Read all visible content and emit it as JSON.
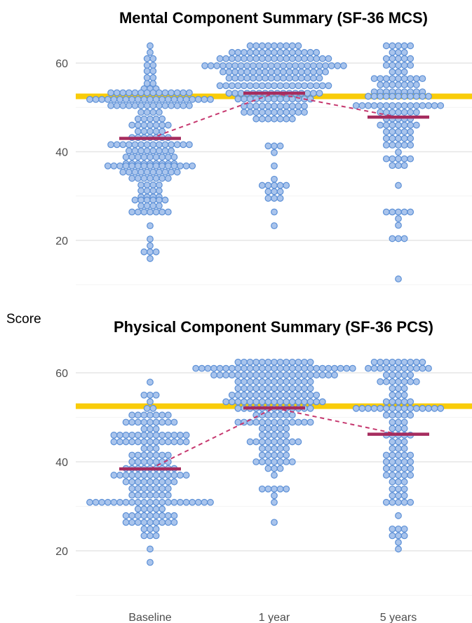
{
  "chart_data": {
    "type": "scatter",
    "subtype": "dot-plot",
    "ylabel": "Score",
    "categories": [
      "Baseline",
      "1 year",
      "5 years"
    ],
    "grid": true,
    "colors": {
      "dot_fill": "#a9c4ec",
      "dot_stroke": "#5b8fd6",
      "reference_line": "#f9cc09",
      "mean_marker": "#a62c5e",
      "mean_connector": "#c6386f"
    },
    "panels": [
      {
        "title": "Mental Component Summary (SF-36 MCS)",
        "ylim": [
          10,
          66
        ],
        "y_ticks": [
          20,
          40,
          60
        ],
        "reference_line": 52.5,
        "means": [
          43.0,
          53.2,
          47.8
        ],
        "series": [
          {
            "category": "Baseline",
            "groups": [
              [
                63.9,
                1
              ],
              [
                62.4,
                1
              ],
              [
                61.0,
                2
              ],
              [
                59.5,
                2
              ],
              [
                58.2,
                2
              ],
              [
                56.7,
                2
              ],
              [
                55.4,
                2
              ],
              [
                54.2,
                3
              ],
              [
                53.3,
                14
              ],
              [
                51.8,
                21
              ],
              [
                50.4,
                14
              ],
              [
                48.9,
                4
              ],
              [
                47.4,
                5
              ],
              [
                46.0,
                7
              ],
              [
                44.6,
                5
              ],
              [
                43.2,
                7
              ],
              [
                41.6,
                14
              ],
              [
                40.2,
                8
              ],
              [
                38.8,
                9
              ],
              [
                37.3,
                9
              ],
              [
                36.8,
                15
              ],
              [
                35.4,
                10
              ],
              [
                34.0,
                7
              ],
              [
                32.5,
                4
              ],
              [
                31.2,
                4
              ],
              [
                29.8,
                4
              ],
              [
                29.1,
                6
              ],
              [
                27.8,
                4
              ],
              [
                26.4,
                7
              ],
              [
                23.3,
                1
              ],
              [
                20.3,
                1
              ],
              [
                18.8,
                1
              ],
              [
                17.4,
                3
              ],
              [
                15.9,
                1
              ]
            ]
          },
          {
            "category": "1 year",
            "groups": [
              [
                63.9,
                9
              ],
              [
                62.4,
                15
              ],
              [
                61.0,
                19
              ],
              [
                59.4,
                24
              ],
              [
                58.0,
                18
              ],
              [
                56.6,
                16
              ],
              [
                54.9,
                19
              ],
              [
                53.2,
                16
              ],
              [
                51.9,
                13
              ],
              [
                50.3,
                11
              ],
              [
                48.9,
                11
              ],
              [
                47.4,
                7
              ],
              [
                41.3,
                3
              ],
              [
                39.8,
                1
              ],
              [
                36.8,
                1
              ],
              [
                33.8,
                1
              ],
              [
                32.4,
                5
              ],
              [
                31.0,
                3
              ],
              [
                29.5,
                3
              ],
              [
                26.4,
                1
              ],
              [
                23.3,
                1
              ]
            ]
          },
          {
            "category": "5 years",
            "groups": [
              [
                63.9,
                5
              ],
              [
                62.4,
                3
              ],
              [
                61.0,
                5
              ],
              [
                59.5,
                5
              ],
              [
                58.0,
                3
              ],
              [
                56.5,
                9
              ],
              [
                55.1,
                7
              ],
              [
                53.5,
                9
              ],
              [
                52.5,
                11
              ],
              [
                50.4,
                15
              ],
              [
                48.9,
                7
              ],
              [
                47.4,
                5
              ],
              [
                46.0,
                7
              ],
              [
                44.5,
                5
              ],
              [
                43.0,
                5
              ],
              [
                41.5,
                5
              ],
              [
                39.9,
                1
              ],
              [
                38.4,
                5
              ],
              [
                36.9,
                3
              ],
              [
                32.4,
                1
              ],
              [
                26.4,
                5
              ],
              [
                24.9,
                1
              ],
              [
                23.4,
                1
              ],
              [
                20.4,
                3
              ],
              [
                11.3,
                1
              ]
            ]
          }
        ]
      },
      {
        "title": "Physical Component Summary (SF-36 PCS)",
        "ylim": [
          10,
          66
        ],
        "y_ticks": [
          20,
          40,
          60
        ],
        "reference_line": 52.5,
        "means": [
          38.4,
          52.1,
          46.2
        ],
        "series": [
          {
            "category": "Baseline",
            "groups": [
              [
                57.9,
                1
              ],
              [
                55.0,
                3
              ],
              [
                53.5,
                1
              ],
              [
                52.0,
                2
              ],
              [
                50.5,
                7
              ],
              [
                48.9,
                9
              ],
              [
                47.4,
                3
              ],
              [
                46.0,
                13
              ],
              [
                44.5,
                13
              ],
              [
                43.0,
                3
              ],
              [
                41.5,
                7
              ],
              [
                40.0,
                7
              ],
              [
                38.5,
                9
              ],
              [
                37.0,
                13
              ],
              [
                35.5,
                9
              ],
              [
                34.0,
                7
              ],
              [
                32.5,
                7
              ],
              [
                30.9,
                21
              ],
              [
                29.4,
                5
              ],
              [
                27.9,
                9
              ],
              [
                26.4,
                9
              ],
              [
                24.9,
                3
              ],
              [
                23.4,
                3
              ],
              [
                20.4,
                1
              ],
              [
                17.4,
                1
              ]
            ]
          },
          {
            "category": "1 year",
            "groups": [
              [
                62.4,
                13
              ],
              [
                61.0,
                27
              ],
              [
                59.5,
                21
              ],
              [
                58.0,
                13
              ],
              [
                56.5,
                13
              ],
              [
                55.0,
                15
              ],
              [
                53.5,
                17
              ],
              [
                52.0,
                13
              ],
              [
                50.5,
                7
              ],
              [
                48.9,
                13
              ],
              [
                47.5,
                5
              ],
              [
                46.0,
                5
              ],
              [
                44.5,
                9
              ],
              [
                43.0,
                5
              ],
              [
                41.5,
                5
              ],
              [
                40.0,
                7
              ],
              [
                38.5,
                3
              ],
              [
                37.0,
                1
              ],
              [
                33.9,
                5
              ],
              [
                32.4,
                1
              ],
              [
                30.9,
                1
              ],
              [
                26.4,
                1
              ]
            ]
          },
          {
            "category": "5 years",
            "groups": [
              [
                62.4,
                9
              ],
              [
                61.0,
                11
              ],
              [
                59.5,
                5
              ],
              [
                58.0,
                7
              ],
              [
                56.5,
                3
              ],
              [
                55.0,
                3
              ],
              [
                53.5,
                5
              ],
              [
                52.0,
                15
              ],
              [
                50.5,
                5
              ],
              [
                48.9,
                3
              ],
              [
                47.5,
                3
              ],
              [
                46.0,
                5
              ],
              [
                44.5,
                3
              ],
              [
                43.0,
                3
              ],
              [
                41.5,
                5
              ],
              [
                40.0,
                5
              ],
              [
                38.5,
                5
              ],
              [
                37.0,
                5
              ],
              [
                35.5,
                3
              ],
              [
                33.9,
                3
              ],
              [
                32.4,
                3
              ],
              [
                30.9,
                5
              ],
              [
                27.9,
                1
              ],
              [
                24.9,
                3
              ],
              [
                23.4,
                3
              ],
              [
                21.9,
                1
              ],
              [
                20.4,
                1
              ]
            ]
          }
        ]
      }
    ]
  }
}
